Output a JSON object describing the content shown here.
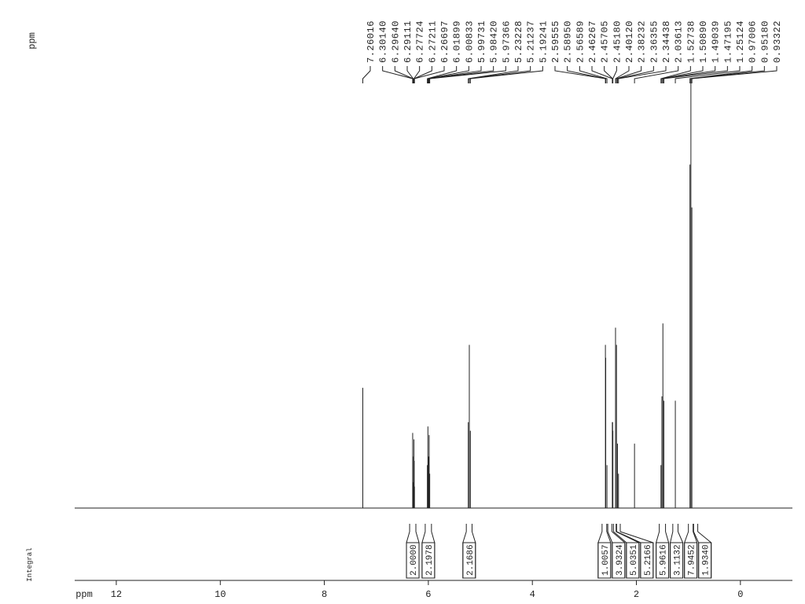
{
  "chart_data": {
    "type": "spectrum",
    "x_axis_label": "ppm",
    "y_axis_label": "ppm",
    "integral_label": "Integral",
    "xlim": [
      12.8,
      -1.0
    ],
    "xticks": [
      12,
      10,
      8,
      6,
      4,
      2,
      0
    ],
    "ylim": [
      0,
      100
    ],
    "color": "#000000",
    "peaks": {
      "x": [
        7.26016,
        6.3014,
        6.2964,
        6.29111,
        6.27724,
        6.27211,
        6.26697,
        6.01899,
        6.00833,
        5.99731,
        5.9842,
        5.97366,
        5.23228,
        5.21237,
        5.19241,
        2.59555,
        2.5895,
        2.56589,
        2.46267,
        2.45705,
        2.4518,
        2.4012,
        2.38232,
        2.36355,
        2.34438,
        2.03613,
        1.52738,
        1.5089,
        1.49039,
        1.47195,
        1.25124,
        0.97006,
        0.9518,
        0.93322
      ],
      "x_labels": [
        "7.26016",
        "6.30140",
        "6.29640",
        "6.29111",
        "6.27724",
        "6.27211",
        "6.26697",
        "6.01899",
        "6.00833",
        "5.99731",
        "5.98420",
        "5.97366",
        "5.23228",
        "5.21237",
        "5.19241",
        "2.59555",
        "2.58950",
        "2.56589",
        "2.46267",
        "2.45705",
        "2.45180",
        "2.40120",
        "2.38232",
        "2.36355",
        "2.34438",
        "2.03613",
        "1.52738",
        "1.50890",
        "1.49039",
        "1.47195",
        "1.25124",
        "0.97006",
        "0.95180",
        "0.93322"
      ],
      "values": [
        28,
        17.5,
        12,
        6,
        16,
        11,
        5,
        10,
        19,
        12,
        17,
        8,
        20,
        38,
        18,
        38,
        35,
        10,
        20,
        20,
        18,
        42,
        38,
        15,
        8,
        15,
        10,
        26,
        43,
        25,
        25,
        80,
        100,
        70
      ]
    },
    "integrals": {
      "from": [
        6.36,
        6.06,
        5.27,
        2.66,
        2.55,
        2.44,
        2.38,
        1.56,
        1.3,
        1.0,
        0.9
      ],
      "to": [
        6.24,
        5.94,
        5.16,
        2.57,
        2.47,
        2.39,
        2.31,
        1.44,
        1.2,
        0.91,
        0.82
      ],
      "values": [
        2.0,
        2.1978,
        2.1686,
        1.0057,
        3.9324,
        5.0351,
        5.2166,
        5.9616,
        3.1132,
        7.9452,
        1.934
      ],
      "value_labels": [
        "2.0000",
        "2.1978",
        "2.1686",
        "1.0057",
        "3.9324",
        "5.0351",
        "5.2166",
        "5.9616",
        "3.1132",
        "7.9452",
        "1.9340"
      ]
    }
  }
}
